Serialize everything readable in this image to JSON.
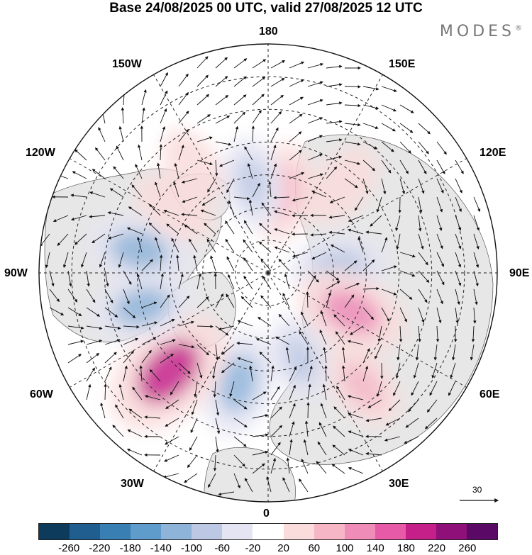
{
  "title": "Base 24/08/2025 00 UTC, valid 27/08/2025 12 UTC",
  "brand": "MODES",
  "brand_mark": "®",
  "longitudes": {
    "top": "180",
    "bottom": "0",
    "left": "90W",
    "right": "90E",
    "upper_left_1": "150W",
    "upper_left_2": "120W",
    "upper_right_1": "150E",
    "upper_right_2": "120E",
    "lower_left_1": "60W",
    "lower_left_2": "30W",
    "lower_right_1": "60E",
    "lower_right_2": "30E"
  },
  "vector_reference": "30",
  "colorbar": {
    "colors": [
      "#0d3b5c",
      "#1f5e8e",
      "#3a7fb4",
      "#5f9bcb",
      "#8fb4da",
      "#bcc8e4",
      "#e4e4f2",
      "#ffffff",
      "#fadcdc",
      "#f6b6c6",
      "#ef8cb8",
      "#e75aa8",
      "#c5208a",
      "#8e1078",
      "#5a0a66"
    ],
    "ticks": [
      "-260",
      "-220",
      "-180",
      "-140",
      "-100",
      "-60",
      "-20",
      "20",
      "60",
      "100",
      "140",
      "180",
      "220",
      "260"
    ]
  },
  "anomaly_centers": [
    {
      "lon": 170,
      "lat": 65,
      "value": 90
    },
    {
      "lon": -170,
      "lat": 62,
      "value": -70
    },
    {
      "lon": 140,
      "lat": 55,
      "value": 60
    },
    {
      "lon": 95,
      "lat": 68,
      "value": -90
    },
    {
      "lon": 65,
      "lat": 62,
      "value": 130
    },
    {
      "lon": 40,
      "lat": 45,
      "value": 70
    },
    {
      "lon": 20,
      "lat": 62,
      "value": -60
    },
    {
      "lon": -15,
      "lat": 55,
      "value": -110
    },
    {
      "lon": -45,
      "lat": 47,
      "value": 200
    },
    {
      "lon": -75,
      "lat": 50,
      "value": -100
    },
    {
      "lon": -100,
      "lat": 50,
      "value": -110
    },
    {
      "lon": -125,
      "lat": 55,
      "value": 60
    },
    {
      "lon": -145,
      "lat": 50,
      "value": 40
    }
  ]
}
